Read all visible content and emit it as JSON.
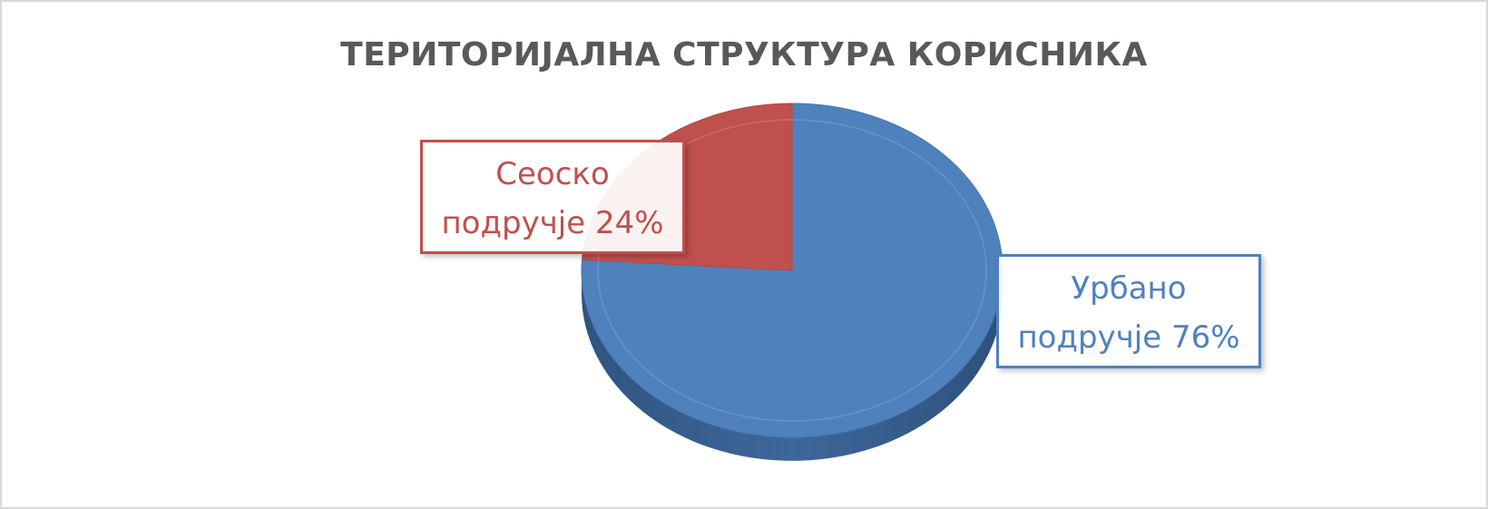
{
  "chart_data": {
    "type": "pie",
    "title": "ТЕРИТОРИЈАЛНА СТРУКТУРА КОРИСНИКА",
    "series": [
      {
        "slices": [
          {
            "name": "Урбано подручје",
            "value": 76,
            "color": "#4f81bd",
            "label_line1": "Урбано",
            "label_line2": "подручје 76%"
          },
          {
            "name": "Сеоско подручје",
            "value": 24,
            "color": "#c0504d",
            "label_line1": "Сеоско",
            "label_line2": "подручје 24%"
          }
        ]
      }
    ],
    "legend": "none",
    "style": "3d"
  }
}
